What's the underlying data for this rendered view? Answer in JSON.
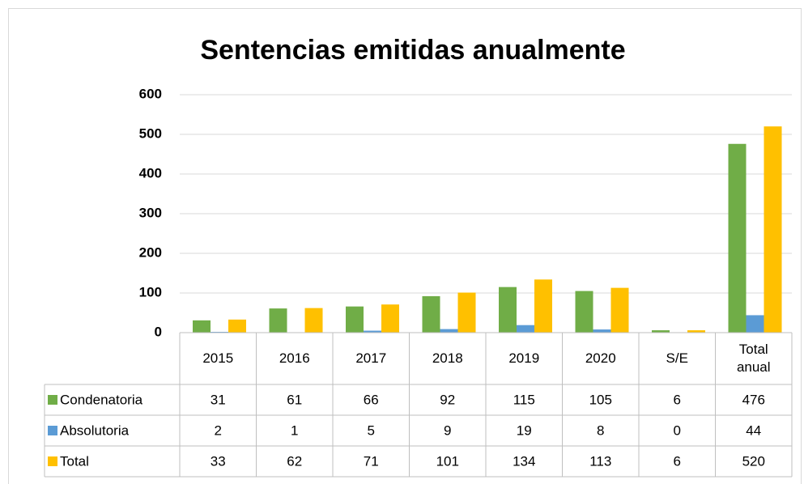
{
  "chart_data": {
    "type": "bar",
    "title": "Sentencias emitidas anualmente",
    "categories": [
      "2015",
      "2016",
      "2017",
      "2018",
      "2019",
      "2020",
      "S/E",
      "Total anual"
    ],
    "series": [
      {
        "name": "Condenatoria",
        "color": "#70ad47",
        "values": [
          31,
          61,
          66,
          92,
          115,
          105,
          6,
          476
        ]
      },
      {
        "name": "Absolutoria",
        "color": "#5b9bd5",
        "values": [
          2,
          1,
          5,
          9,
          19,
          8,
          0,
          44
        ]
      },
      {
        "name": "Total",
        "color": "#ffc000",
        "values": [
          33,
          62,
          71,
          101,
          134,
          113,
          6,
          520
        ]
      }
    ],
    "ylim": [
      0,
      600
    ],
    "yticks": [
      0,
      100,
      200,
      300,
      400,
      500,
      600
    ],
    "grid": true,
    "data_table": true
  }
}
